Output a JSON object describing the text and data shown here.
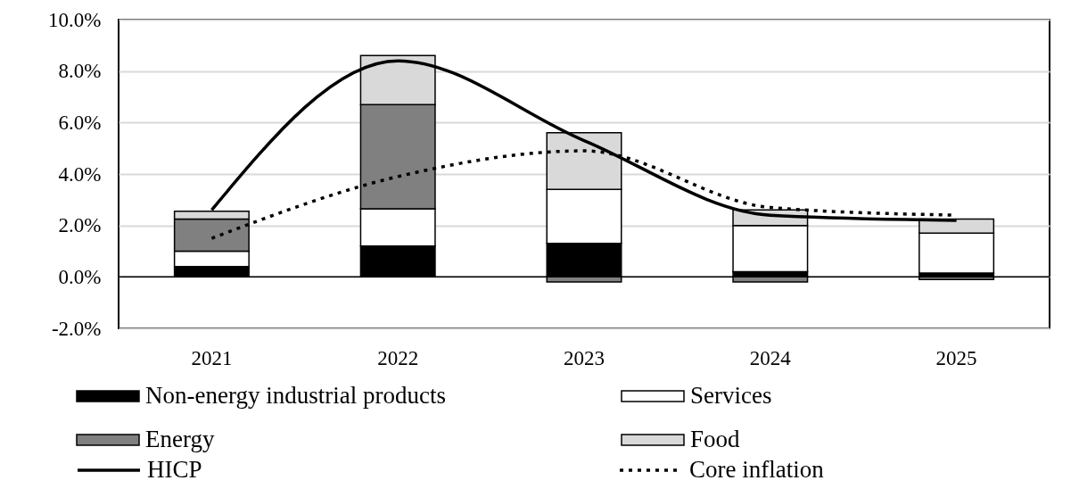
{
  "chart_data": {
    "type": "bar",
    "stacked": true,
    "categories": [
      "2021",
      "2022",
      "2023",
      "2024",
      "2025"
    ],
    "series": [
      {
        "name": "Non-energy industrial products",
        "color": "#000000",
        "values": [
          0.4,
          1.2,
          1.3,
          0.2,
          0.15
        ]
      },
      {
        "name": "Services",
        "color": "#ffffff",
        "values": [
          0.6,
          1.45,
          2.1,
          1.8,
          1.55
        ]
      },
      {
        "name": "Energy",
        "color": "#808080",
        "values": [
          1.25,
          4.05,
          -0.2,
          -0.2,
          -0.1
        ]
      },
      {
        "name": "Food",
        "color": "#d9d9d9",
        "values": [
          0.3,
          1.9,
          2.2,
          0.6,
          0.55
        ]
      },
      {
        "name": "HICP",
        "type": "line",
        "color": "#000000",
        "line_style": "solid",
        "values": [
          2.6,
          8.4,
          5.3,
          2.4,
          2.2
        ]
      },
      {
        "name": "Core inflation",
        "type": "line",
        "color": "#000000",
        "line_style": "dotted",
        "values": [
          1.5,
          3.9,
          4.9,
          2.7,
          2.4
        ]
      }
    ],
    "ylim": [
      -2,
      10
    ],
    "yticks": [
      {
        "value": -2,
        "label": "-2.0%"
      },
      {
        "value": 0,
        "label": "0.0%"
      },
      {
        "value": 2,
        "label": "2.0%"
      },
      {
        "value": 4,
        "label": "4.0%"
      },
      {
        "value": 6,
        "label": "6.0%"
      },
      {
        "value": 8,
        "label": "8.0%"
      },
      {
        "value": 10,
        "label": "10.0%"
      }
    ],
    "grid": "y",
    "legend": "bottom",
    "ref_lines": [
      {
        "axis": "y",
        "value": 0,
        "color": "#000000"
      }
    ]
  }
}
